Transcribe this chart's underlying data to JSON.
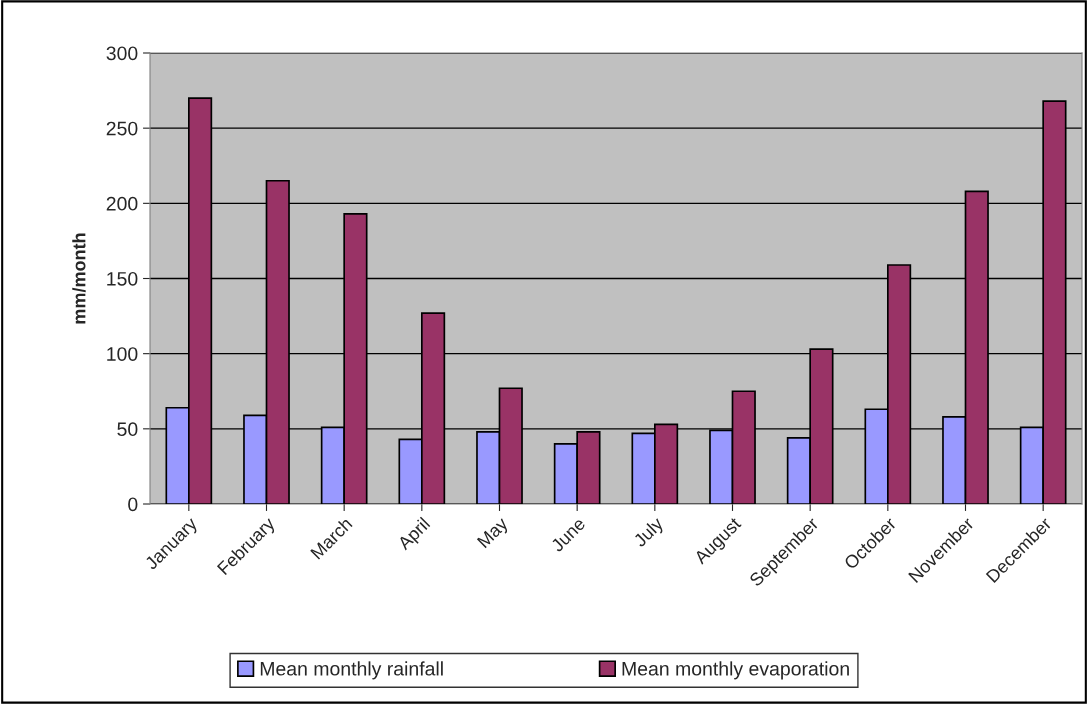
{
  "chart_data": {
    "type": "bar",
    "ylabel": "mm/month",
    "categories": [
      "January",
      "February",
      "March",
      "April",
      "May",
      "June",
      "July",
      "August",
      "September",
      "October",
      "November",
      "December"
    ],
    "series": [
      {
        "name": "Mean monthly rainfall",
        "color": "#9999ff",
        "values": [
          64,
          59,
          51,
          43,
          48,
          40,
          47,
          49,
          44,
          63,
          58,
          51
        ]
      },
      {
        "name": "Mean monthly evaporation",
        "color": "#993366",
        "values": [
          270,
          215,
          193,
          127,
          77,
          48,
          53,
          75,
          103,
          159,
          208,
          268
        ]
      }
    ],
    "ylim": [
      0,
      300
    ],
    "yticks": [
      0,
      50,
      100,
      150,
      200,
      250,
      300
    ],
    "grid": "y",
    "legend": "bottom"
  }
}
